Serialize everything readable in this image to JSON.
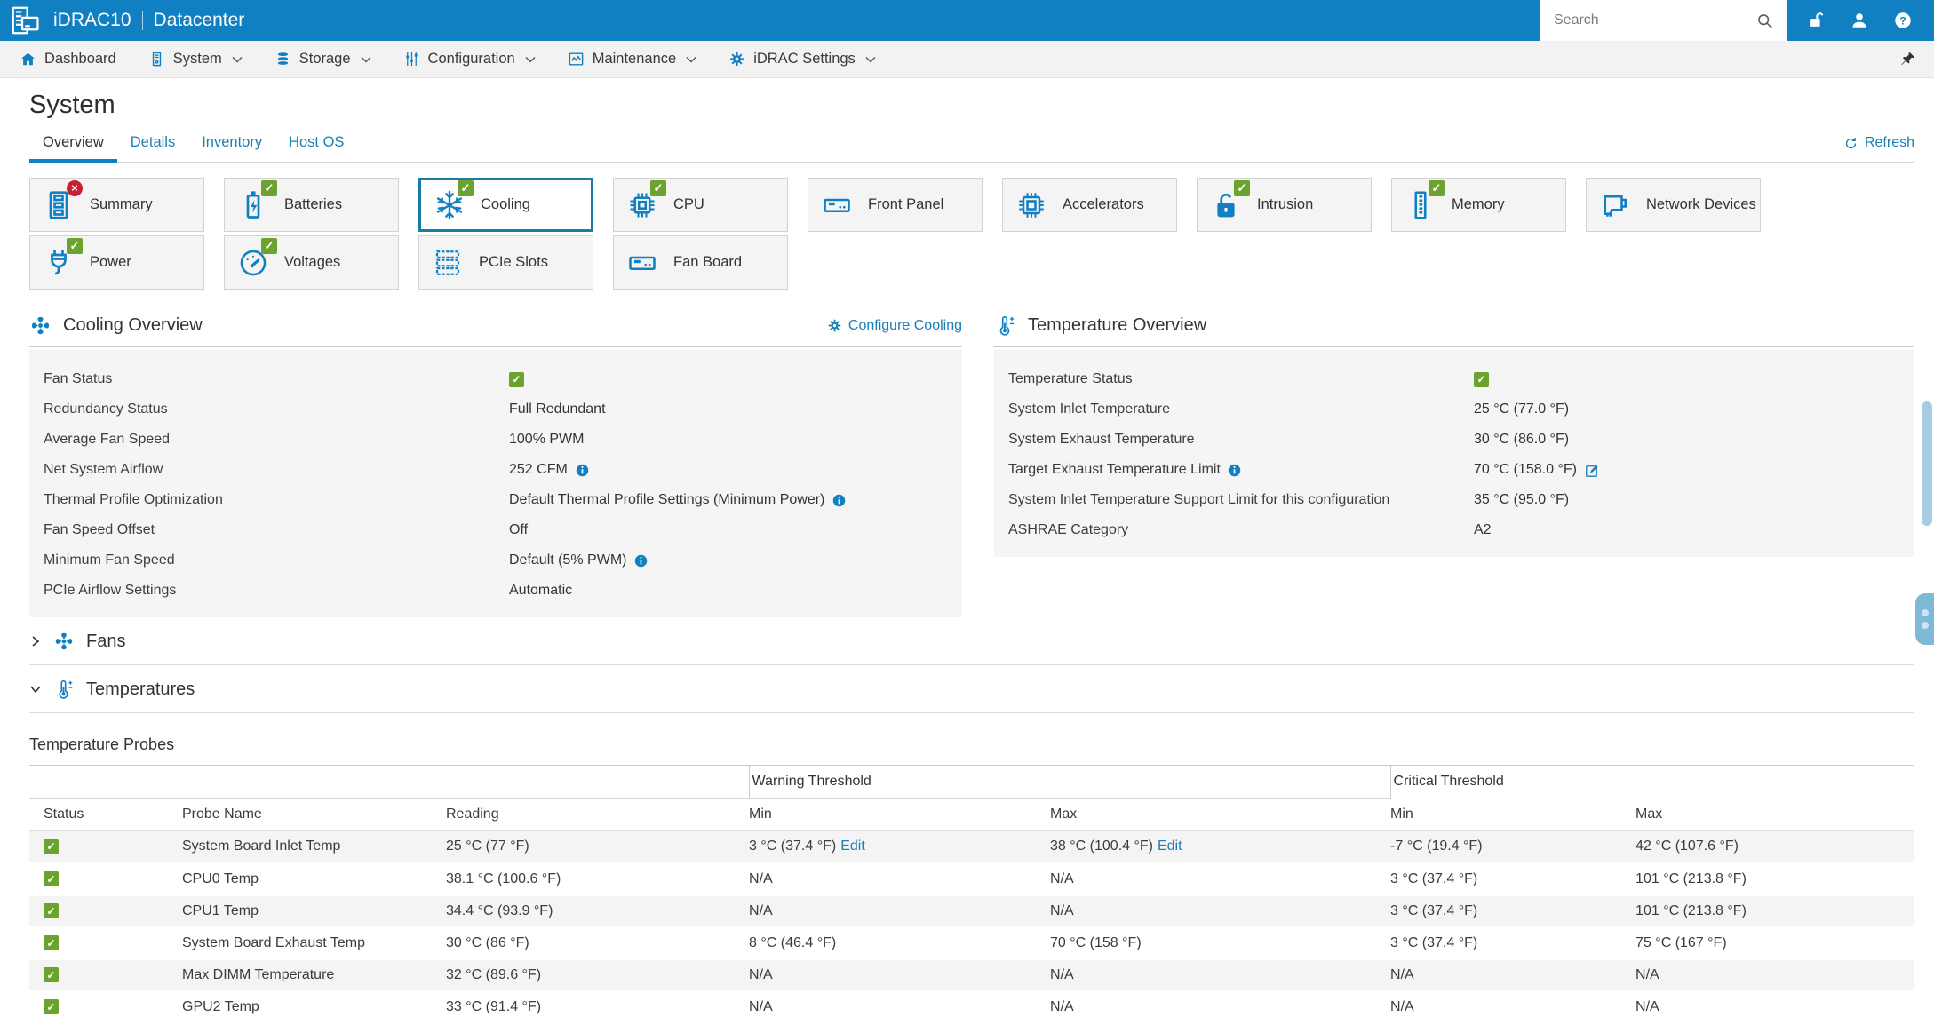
{
  "colors": {
    "accent": "#1080c3",
    "link": "#1a7fb5",
    "ok_green": "#6ca32f",
    "error_red": "#c81f33",
    "selected_tile_border": "#1a7ba3"
  },
  "header": {
    "brand": "iDRAC10",
    "product": "Datacenter",
    "search_placeholder": "Search",
    "icons": [
      "unlock-icon",
      "user-icon",
      "help-icon"
    ]
  },
  "nav": {
    "items": [
      {
        "label": "Dashboard",
        "icon": "home-icon",
        "dropdown": false
      },
      {
        "label": "System",
        "icon": "system-icon",
        "dropdown": true
      },
      {
        "label": "Storage",
        "icon": "storage-icon",
        "dropdown": true
      },
      {
        "label": "Configuration",
        "icon": "sliders-icon",
        "dropdown": true
      },
      {
        "label": "Maintenance",
        "icon": "maintenance-icon",
        "dropdown": true
      },
      {
        "label": "iDRAC Settings",
        "icon": "gear-icon",
        "dropdown": true
      }
    ],
    "pin_icon": "pin-icon"
  },
  "page": {
    "title": "System",
    "tabs": [
      {
        "label": "Overview",
        "active": true
      },
      {
        "label": "Details",
        "active": false
      },
      {
        "label": "Inventory",
        "active": false
      },
      {
        "label": "Host OS",
        "active": false
      }
    ],
    "refresh_label": "Refresh"
  },
  "tiles": [
    {
      "label": "Summary",
      "icon": "server-rack-icon",
      "status": "error",
      "selected": false
    },
    {
      "label": "Batteries",
      "icon": "battery-icon",
      "status": "ok",
      "selected": false
    },
    {
      "label": "Cooling",
      "icon": "snowflake-icon",
      "status": "ok",
      "selected": true
    },
    {
      "label": "CPU",
      "icon": "cpu-icon",
      "status": "ok",
      "selected": false
    },
    {
      "label": "Front Panel",
      "icon": "front-panel-icon",
      "status": null,
      "selected": false
    },
    {
      "label": "Accelerators",
      "icon": "accelerator-icon",
      "status": null,
      "selected": false
    },
    {
      "label": "Intrusion",
      "icon": "lock-icon",
      "status": "ok",
      "selected": false
    },
    {
      "label": "Memory",
      "icon": "memory-icon",
      "status": "ok",
      "selected": false
    },
    {
      "label": "Network Devices",
      "icon": "network-card-icon",
      "status": null,
      "selected": false
    },
    {
      "label": "Power",
      "icon": "power-plug-icon",
      "status": "ok",
      "selected": false
    },
    {
      "label": "Voltages",
      "icon": "gauge-icon",
      "status": "ok",
      "selected": false
    },
    {
      "label": "PCIe Slots",
      "icon": "pcie-slots-icon",
      "status": null,
      "selected": false
    },
    {
      "label": "Fan Board",
      "icon": "fan-board-icon",
      "status": null,
      "selected": false
    }
  ],
  "cooling_overview": {
    "title": "Cooling Overview",
    "icon": "fan-icon",
    "action_label": "Configure Cooling",
    "action_icon": "gear-icon",
    "rows": [
      {
        "label": "Fan Status",
        "value": "",
        "check": true
      },
      {
        "label": "Redundancy Status",
        "value": "Full Redundant"
      },
      {
        "label": "Average Fan Speed",
        "value": "100% PWM"
      },
      {
        "label": "Net System Airflow",
        "value": "252 CFM",
        "value_info": true
      },
      {
        "label": "Thermal Profile Optimization",
        "value": "Default Thermal Profile Settings (Minimum Power)",
        "value_info": true
      },
      {
        "label": "Fan Speed Offset",
        "value": "Off"
      },
      {
        "label": "Minimum Fan Speed",
        "value": "Default (5% PWM)",
        "value_info": true
      },
      {
        "label": "PCIe Airflow Settings",
        "value": "Automatic"
      }
    ]
  },
  "temperature_overview": {
    "title": "Temperature Overview",
    "icon": "thermometer-icon",
    "rows": [
      {
        "label": "Temperature Status",
        "value": "",
        "check": true
      },
      {
        "label": "System Inlet Temperature",
        "value": "25 °C (77.0 °F)"
      },
      {
        "label": "System Exhaust Temperature",
        "value": "30 °C (86.0 °F)"
      },
      {
        "label": "Target Exhaust Temperature Limit",
        "label_info": true,
        "value": "70 °C (158.0 °F)",
        "value_edit": true
      },
      {
        "label": "System Inlet Temperature Support Limit for this configuration",
        "value": "35 °C (95.0 °F)"
      },
      {
        "label": "ASHRAE Category",
        "value": "A2"
      }
    ]
  },
  "sections": {
    "fans": {
      "label": "Fans",
      "icon": "fan-icon",
      "expanded": false
    },
    "temperatures": {
      "label": "Temperatures",
      "icon": "thermometer-icon",
      "expanded": true
    }
  },
  "probes": {
    "heading": "Temperature Probes",
    "groups": [
      "Warning Threshold",
      "Critical Threshold"
    ],
    "columns": [
      "Status",
      "Probe Name",
      "Reading",
      "Min",
      "Max",
      "Min",
      "Max"
    ],
    "rows": [
      {
        "status": "ok",
        "name": "System Board Inlet Temp",
        "reading": "25 °C (77 °F)",
        "warn_min": "3 °C (37.4 °F)",
        "warn_min_edit": "Edit",
        "warn_max": "38 °C (100.4 °F)",
        "warn_max_edit": "Edit",
        "crit_min": "-7 °C (19.4 °F)",
        "crit_max": "42 °C (107.6 °F)"
      },
      {
        "status": "ok",
        "name": "CPU0 Temp",
        "reading": "38.1 °C (100.6 °F)",
        "warn_min": "N/A",
        "warn_max": "N/A",
        "crit_min": "3 °C (37.4 °F)",
        "crit_max": "101 °C (213.8 °F)"
      },
      {
        "status": "ok",
        "name": "CPU1 Temp",
        "reading": "34.4 °C (93.9 °F)",
        "warn_min": "N/A",
        "warn_max": "N/A",
        "crit_min": "3 °C (37.4 °F)",
        "crit_max": "101 °C (213.8 °F)"
      },
      {
        "status": "ok",
        "name": "System Board Exhaust Temp",
        "reading": "30 °C (86 °F)",
        "warn_min": "8 °C (46.4 °F)",
        "warn_max": "70 °C (158 °F)",
        "crit_min": "3 °C (37.4 °F)",
        "crit_max": "75 °C (167 °F)"
      },
      {
        "status": "ok",
        "name": "Max DIMM Temperature",
        "reading": "32 °C (89.6 °F)",
        "warn_min": "N/A",
        "warn_max": "N/A",
        "crit_min": "N/A",
        "crit_max": "N/A"
      },
      {
        "status": "ok",
        "name": "GPU2 Temp",
        "reading": "33 °C (91.4 °F)",
        "warn_min": "N/A",
        "warn_max": "N/A",
        "crit_min": "N/A",
        "crit_max": "N/A"
      }
    ]
  }
}
